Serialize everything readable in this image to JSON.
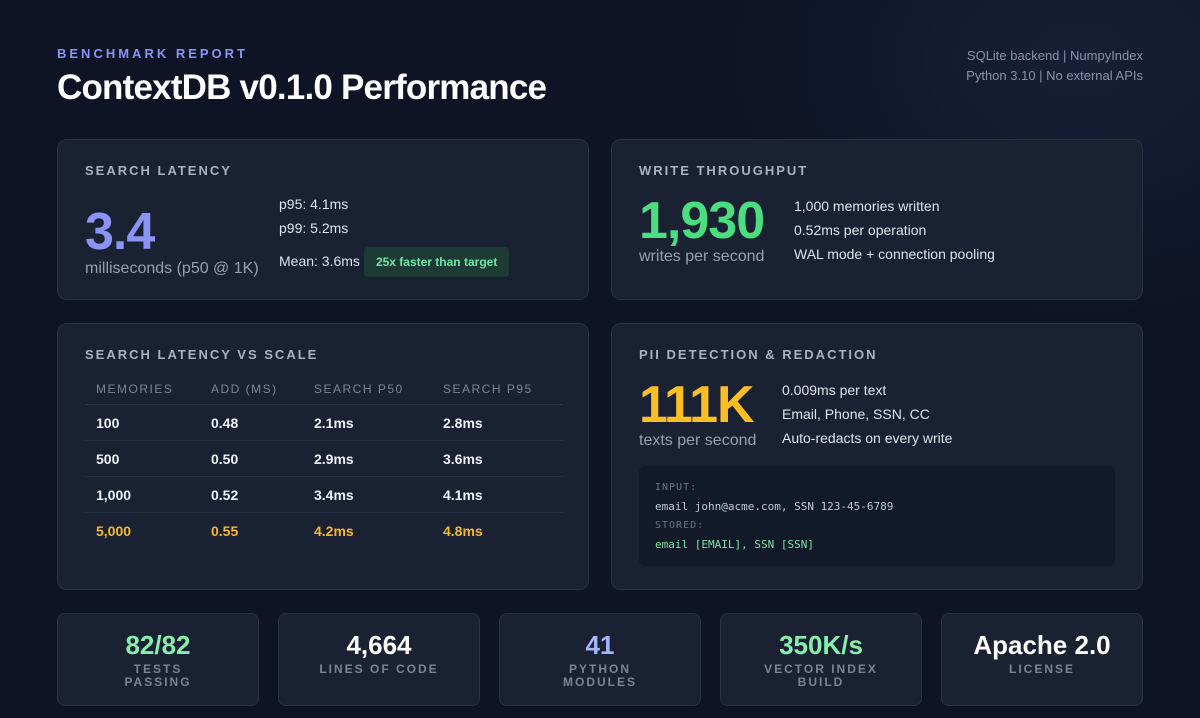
{
  "header": {
    "eyebrow": "BENCHMARK REPORT",
    "title": "ContextDB v0.1.0 Performance",
    "meta_line1": "SQLite backend | NumpyIndex",
    "meta_line2": "Python 3.10 | No external APIs"
  },
  "search_latency": {
    "label": "SEARCH LATENCY",
    "value": "3.4",
    "unit": "milliseconds (p50 @ 1K)",
    "p95": "p95: 4.1ms",
    "p99": "p99: 5.2ms",
    "mean": "Mean: 3.6ms",
    "badge": "25x faster than target"
  },
  "write_throughput": {
    "label": "WRITE THROUGHPUT",
    "value": "1,930",
    "unit": "writes per second",
    "line1": "1,000 memories written",
    "line2": "0.52ms per operation",
    "line3": "WAL mode + connection pooling"
  },
  "scale_table": {
    "label": "SEARCH LATENCY VS SCALE",
    "headers": [
      "MEMORIES",
      "ADD (MS)",
      "SEARCH P50",
      "SEARCH P95"
    ],
    "rows": [
      [
        "100",
        "0.48",
        "2.1ms",
        "2.8ms"
      ],
      [
        "500",
        "0.50",
        "2.9ms",
        "3.6ms"
      ],
      [
        "1,000",
        "0.52",
        "3.4ms",
        "4.1ms"
      ],
      [
        "5,000",
        "0.55",
        "4.2ms",
        "4.8ms"
      ]
    ]
  },
  "pii": {
    "label": "PII DETECTION & REDACTION",
    "value": "111K",
    "unit": "texts per second",
    "line1": "0.009ms per text",
    "line2": "Email, Phone, SSN, CC",
    "line3": "Auto-redacts on every write",
    "input_label": "INPUT:",
    "input_value": "email john@acme.com, SSN 123-45-6789",
    "stored_label": "STORED:",
    "stored_value": "email [EMAIL], SSN [SSN]"
  },
  "stats": [
    {
      "value": "82/82",
      "label": "TESTS PASSING"
    },
    {
      "value": "4,664",
      "label": "LINES OF CODE"
    },
    {
      "value": "41",
      "label": "PYTHON MODULES"
    },
    {
      "value": "350K/s",
      "label": "VECTOR INDEX BUILD"
    },
    {
      "value": "Apache 2.0",
      "label": "LICENSE"
    }
  ],
  "colors": {
    "accent_indigo": "#8b93f5",
    "accent_green": "#4ade80",
    "accent_amber": "#fbbf24",
    "stat_green": "#86efac",
    "stat_indigo": "#a5b4fc"
  }
}
